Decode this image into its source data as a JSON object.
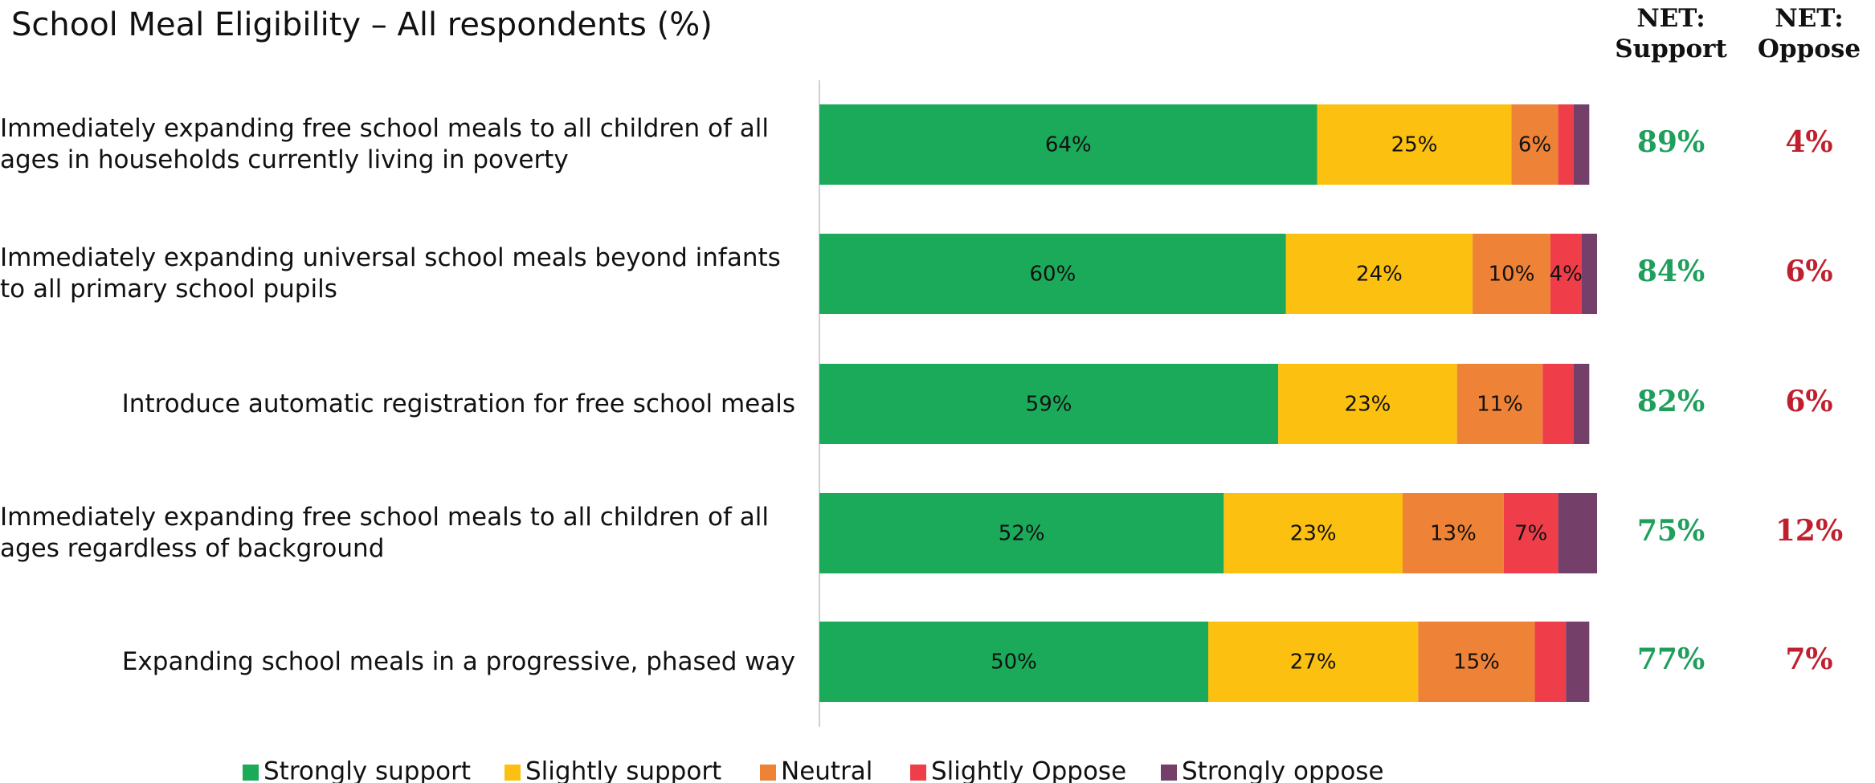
{
  "chart_data": {
    "type": "stacked_bar_horizontal",
    "title": "School Meal Eligibility  – All respondents (%)",
    "categories": [
      "Immediately expanding free school meals to all children of all ages in households currently living in poverty",
      "Immediately expanding universal school meals beyond infants to all primary school pupils",
      "Introduce automatic registration for free school meals",
      "Immediately expanding free school meals to all children of all ages regardless of background",
      "Expanding school meals in a progressive, phased way"
    ],
    "xlim": [
      0,
      100
    ],
    "series": [
      {
        "name": "Strongly support",
        "color": "#1aaa5a",
        "values": [
          64,
          60,
          59,
          52,
          50
        ],
        "value_labels": [
          "64%",
          "60%",
          "59%",
          "52%",
          "50%"
        ]
      },
      {
        "name": "Slightly support",
        "color": "#fcc010",
        "values": [
          25,
          24,
          23,
          23,
          27
        ],
        "value_labels": [
          "25%",
          "24%",
          "23%",
          "23%",
          "27%"
        ]
      },
      {
        "name": "Neutral",
        "color": "#ee8236",
        "values": [
          6,
          10,
          11,
          13,
          15
        ],
        "value_labels": [
          "6%",
          "10%",
          "11%",
          "13%",
          "15%"
        ]
      },
      {
        "name": "Slightly Oppose",
        "color": "#ef3e4a",
        "values": [
          2,
          4,
          4,
          7,
          4
        ],
        "value_labels": [
          null,
          "4%",
          null,
          "7%",
          null
        ]
      },
      {
        "name": "Strongly oppose",
        "color": "#74406a",
        "values": [
          2,
          2,
          2,
          5,
          3
        ],
        "value_labels": [
          null,
          null,
          null,
          null,
          null
        ]
      }
    ],
    "net_columns": [
      {
        "title": "NET: Support",
        "color": "#1f9e5c",
        "values": [
          89,
          84,
          82,
          75,
          77
        ],
        "value_labels": [
          "89%",
          "84%",
          "82%",
          "75%",
          "77%"
        ]
      },
      {
        "title": "NET: Oppose",
        "color": "#c0202e",
        "values": [
          4,
          6,
          6,
          12,
          7
        ],
        "value_labels": [
          "4%",
          "6%",
          "6%",
          "12%",
          "7%"
        ]
      }
    ]
  }
}
